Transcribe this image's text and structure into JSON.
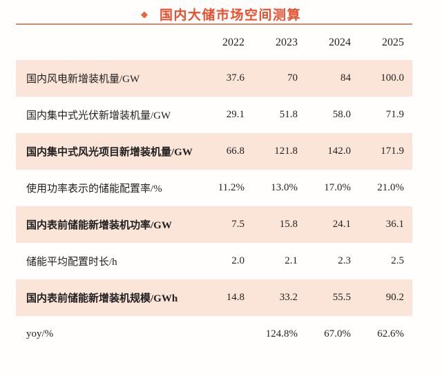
{
  "title": {
    "bullet": "◆",
    "text": "国内大储市场空间测算"
  },
  "chart_data": {
    "type": "table",
    "title": "国内大储市场空间测算",
    "year_headers": [
      "2022",
      "2023",
      "2024",
      "2025"
    ],
    "rows": [
      {
        "label": "国内风电新增装机量/GW",
        "values": [
          "37.6",
          "70",
          "84",
          "100.0"
        ],
        "bold": false
      },
      {
        "label": "国内集中式光伏新增装机量/GW",
        "values": [
          "29.1",
          "51.8",
          "58.0",
          "71.9"
        ],
        "bold": false
      },
      {
        "label": "国内集中式风光项目新增装机量/GW",
        "values": [
          "66.8",
          "121.8",
          "142.0",
          "171.9"
        ],
        "bold": true
      },
      {
        "label": "使用功率表示的储能配置率/%",
        "values": [
          "11.2%",
          "13.0%",
          "17.0%",
          "21.0%"
        ],
        "bold": false
      },
      {
        "label": "国内表前储能新增装机功率/GW",
        "values": [
          "7.5",
          "15.8",
          "24.1",
          "36.1"
        ],
        "bold": true
      },
      {
        "label": "储能平均配置时长/h",
        "values": [
          "2.0",
          "2.1",
          "2.3",
          "2.5"
        ],
        "bold": false
      },
      {
        "label": "国内表前储能新增装机规模/GWh",
        "values": [
          "14.8",
          "33.2",
          "55.5",
          "90.2"
        ],
        "bold": true
      },
      {
        "label": "yoy/%",
        "values": [
          "",
          "124.8%",
          "67.0%",
          "62.6%"
        ],
        "bold": false
      }
    ]
  },
  "colors": {
    "title_red": "#ec4f2d",
    "accent_orange": "#e8643c",
    "row_pink": "#fbe5d8",
    "divider_muted": "#c98a6e",
    "text": "#1f1f1f"
  }
}
